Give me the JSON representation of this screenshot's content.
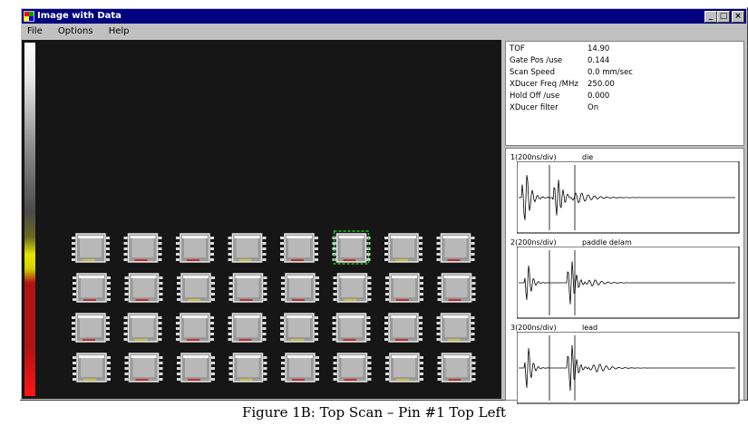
{
  "window": {
    "title": "Image with Data",
    "controls": [
      "_",
      "□",
      "×"
    ]
  },
  "menu": [
    "File",
    "Options",
    "Help"
  ],
  "params": [
    {
      "label": "TOF",
      "value": "14.90"
    },
    {
      "label": "Gate Pos /use",
      "value": "0.144"
    },
    {
      "label": "Scan Speed",
      "value": "0.0 mm/sec"
    },
    {
      "label": "XDucer Freq /MHz",
      "value": "250.00"
    },
    {
      "label": "Hold Off /use",
      "value": "0.000"
    },
    {
      "label": "XDucer filter",
      "value": "On"
    }
  ],
  "waveforms": [
    {
      "label": "1(200ns/div)",
      "name": "die"
    },
    {
      "label": "2(200ns/div)",
      "name": "paddle delam"
    },
    {
      "label": "3(200ns/div)",
      "name": "lead"
    }
  ],
  "scan": {
    "rows": 4,
    "cols": 8,
    "selected_row": 1,
    "selected_col": 6
  },
  "colors": {
    "title_bar": "#000080",
    "window_bg": "#c0c0c0",
    "scan_bg": "#161616"
  },
  "caption": "Figure 1B: Top Scan – Pin #1 Top Left"
}
